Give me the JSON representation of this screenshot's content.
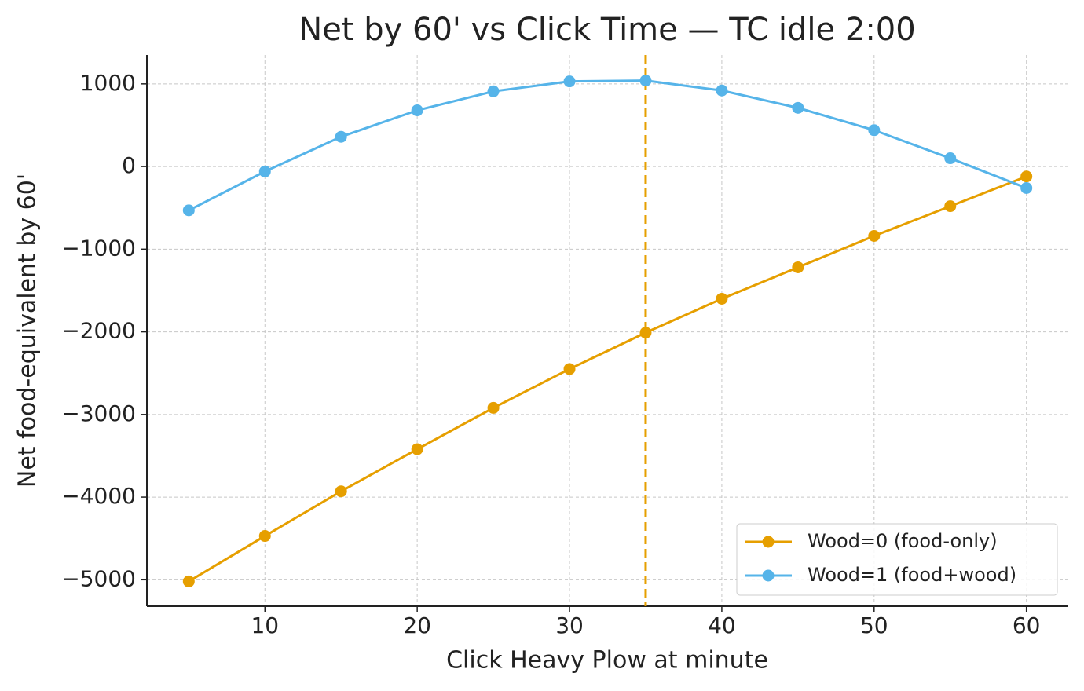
{
  "chart_data": {
    "type": "line",
    "title": "Net by 60' vs Click Time — TC idle 2:00",
    "x_label": "Click Heavy Plow at minute",
    "y_label": "Net food-equivalent by 60'",
    "x": [
      5,
      10,
      15,
      20,
      25,
      30,
      35,
      40,
      45,
      50,
      55,
      60
    ],
    "series": [
      {
        "name": "Wood=0 (food-only)",
        "color": "#e69f00",
        "values": [
          -5020,
          -4470,
          -3930,
          -3420,
          -2920,
          -2450,
          -2010,
          -1600,
          -1220,
          -840,
          -480,
          -120
        ]
      },
      {
        "name": "Wood=1 (food+wood)",
        "color": "#56b4e9",
        "values": [
          -530,
          -60,
          360,
          680,
          910,
          1030,
          1040,
          920,
          710,
          440,
          100,
          -260
        ]
      }
    ],
    "vline": {
      "x": 35,
      "color": "#e69f00",
      "style": "dashed"
    },
    "xlim": [
      2.25,
      62.75
    ],
    "ylim": [
      -5320,
      1350
    ],
    "xticks": [
      10,
      20,
      30,
      40,
      50,
      60
    ],
    "yticks": [
      {
        "value": -5000,
        "label": "−5000"
      },
      {
        "value": -4000,
        "label": "−4000"
      },
      {
        "value": -3000,
        "label": "−3000"
      },
      {
        "value": -2000,
        "label": "−2000"
      },
      {
        "value": -1000,
        "label": "−1000"
      },
      0,
      1000
    ],
    "grid": true,
    "legend": "lower right"
  }
}
